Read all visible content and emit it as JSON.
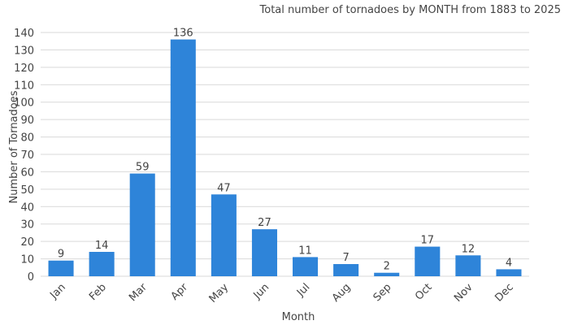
{
  "chart_data": {
    "type": "bar",
    "title": "Total number of tornadoes by MONTH from 1883 to 2025",
    "xlabel": "Month",
    "ylabel": "Number of Tornadoes",
    "categories": [
      "Jan",
      "Feb",
      "Mar",
      "Apr",
      "May",
      "Jun",
      "Jul",
      "Aug",
      "Sep",
      "Oct",
      "Nov",
      "Dec"
    ],
    "values": [
      9,
      14,
      59,
      136,
      47,
      27,
      11,
      7,
      2,
      17,
      12,
      4
    ],
    "ylim": [
      0,
      140
    ],
    "yticks": [
      0,
      10,
      20,
      30,
      40,
      50,
      60,
      70,
      80,
      90,
      100,
      110,
      120,
      130,
      140
    ],
    "grid": true,
    "bar_color": "#2e84d9"
  }
}
